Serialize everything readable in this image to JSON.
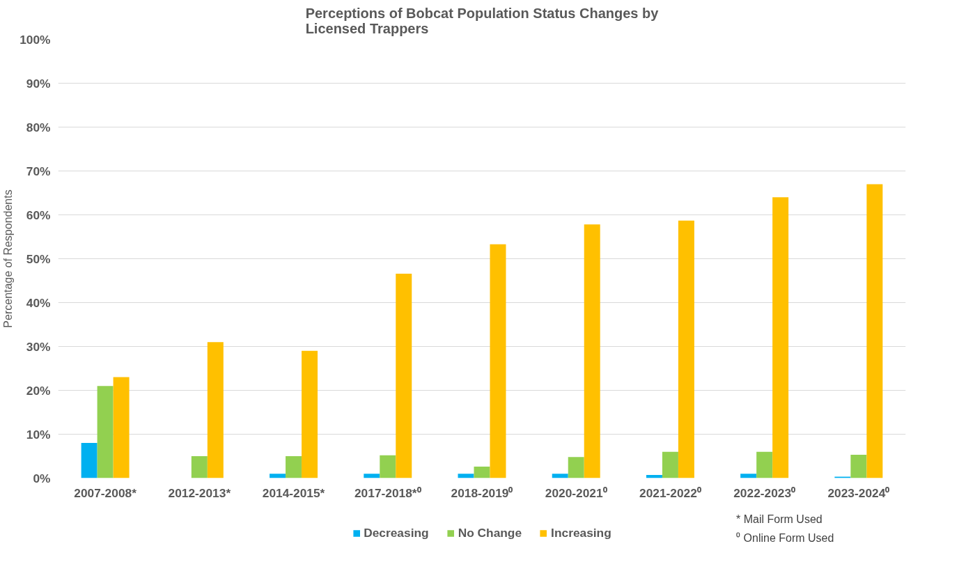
{
  "chart_data": {
    "type": "bar",
    "title": "Perceptions of Bobcat Population Status Changes by\nLicensed Trappers",
    "ylabel": "Percentage of Respondents",
    "categories": [
      "2007-2008*",
      "2012-2013*",
      "2014-2015*",
      "2017-2018*⁰",
      "2018-2019⁰",
      "2020-2021⁰",
      "2021-2022⁰",
      "2022-2023⁰",
      "2023-2024⁰"
    ],
    "series": [
      {
        "name": "Decreasing",
        "color": "#00b0f0",
        "values": [
          8,
          0,
          1,
          1,
          1,
          1,
          0.7,
          1,
          0.3
        ]
      },
      {
        "name": "No Change",
        "color": "#92d050",
        "values": [
          21,
          5,
          5,
          5.2,
          2.6,
          4.8,
          6,
          6,
          5.3
        ]
      },
      {
        "name": "Increasing",
        "color": "#ffc000",
        "values": [
          23,
          31,
          29,
          46.6,
          53.3,
          57.8,
          58.7,
          64,
          67
        ]
      }
    ],
    "ylim": [
      0,
      100
    ],
    "yticks": [
      {
        "value": 0,
        "label": "0%"
      },
      {
        "value": 10,
        "label": "10%"
      },
      {
        "value": 20,
        "label": "20%"
      },
      {
        "value": 30,
        "label": "30%"
      },
      {
        "value": 40,
        "label": "40%"
      },
      {
        "value": 50,
        "label": "50%"
      },
      {
        "value": 60,
        "label": "60%"
      },
      {
        "value": 70,
        "label": "70%"
      },
      {
        "value": 80,
        "label": "80%"
      },
      {
        "value": 90,
        "label": "90%"
      },
      {
        "value": 100,
        "label": "100%"
      }
    ],
    "grid": "y",
    "legend": "bottom",
    "annotations": [
      "* Mail Form Used",
      "⁰ Online Form Used"
    ]
  }
}
